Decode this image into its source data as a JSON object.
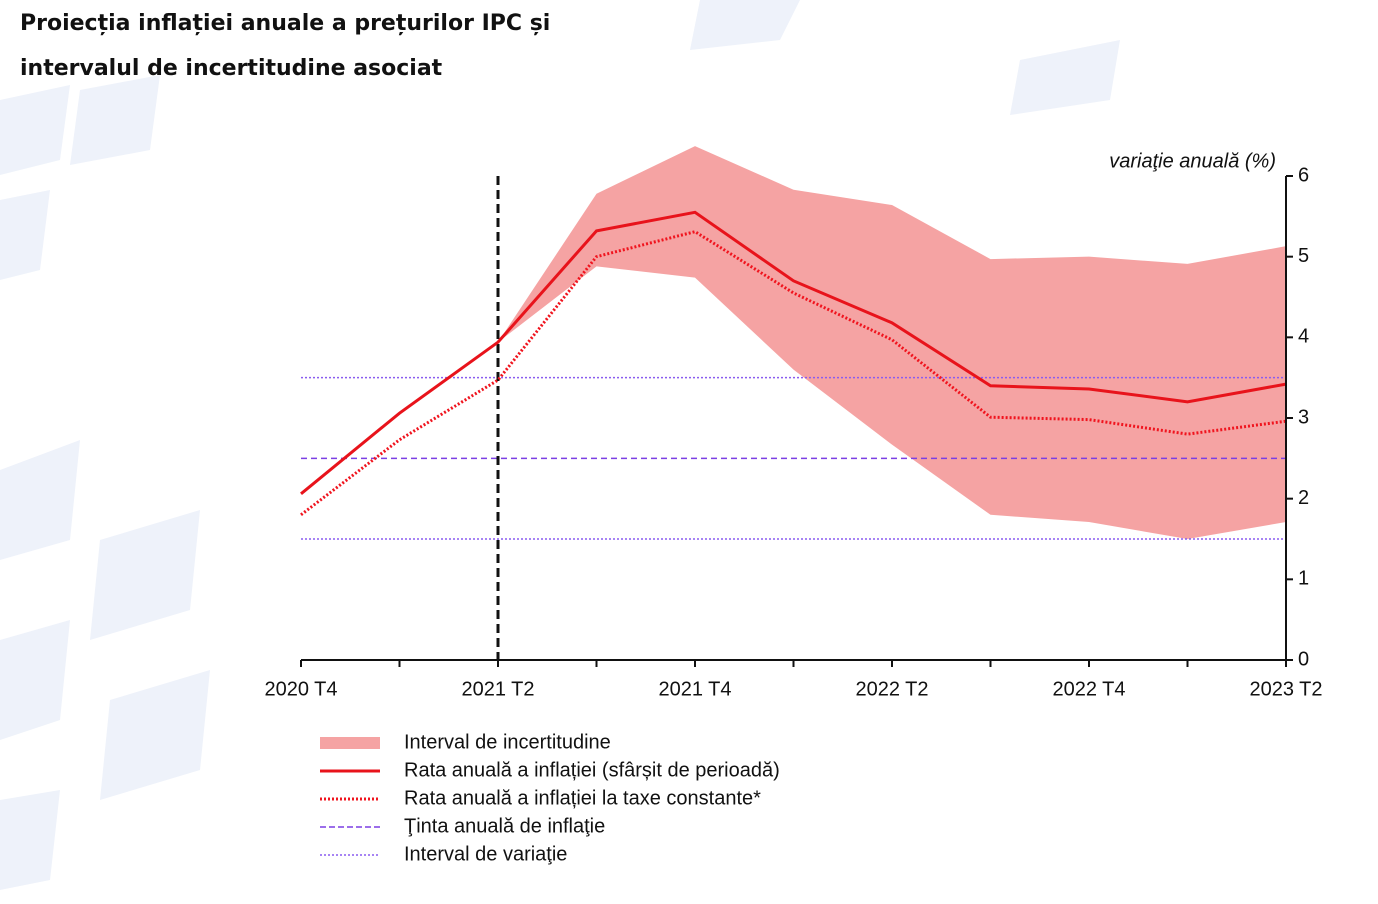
{
  "chart_data": {
    "type": "line",
    "title": [
      "Proiecția inflației anuale a prețurilor IPC și",
      "intervalul de incertitudine asociat"
    ],
    "y_axis_label": "variaţie anuală (%)",
    "categories": [
      "2020 T4",
      null,
      "2021 T2",
      null,
      "2021 T4",
      null,
      "2022 T2",
      null,
      "2022 T4",
      null,
      "2023 T2"
    ],
    "ylim": [
      0,
      6
    ],
    "yticks": [
      0,
      1,
      2,
      3,
      4,
      5,
      6
    ],
    "forecast_start": "2021 T2",
    "band": {
      "name": "Interval de incertitudine",
      "color": "#f5a3a3",
      "lower": [
        null,
        null,
        3.94,
        4.88,
        4.74,
        3.6,
        2.67,
        1.8,
        1.71,
        1.5,
        1.71
      ],
      "upper": [
        null,
        null,
        3.94,
        5.78,
        6.37,
        5.83,
        5.64,
        4.97,
        5.0,
        4.91,
        5.13
      ]
    },
    "series": [
      {
        "name": "Rata anuală a inflației (sfârșit de perioadă)",
        "color": "#e8131b",
        "style": "solid",
        "values": [
          2.06,
          3.06,
          3.94,
          5.32,
          5.55,
          4.7,
          4.18,
          3.4,
          3.36,
          3.2,
          3.42
        ]
      },
      {
        "name": "Rata anuală a inflației la taxe constante*",
        "color": "#f0141e",
        "style": "dotted",
        "values": [
          1.8,
          2.73,
          3.47,
          5.0,
          5.31,
          4.55,
          3.97,
          3.01,
          2.98,
          2.8,
          2.96
        ]
      }
    ],
    "reference_lines": [
      {
        "name": "Ţinta anuală de inflaţie",
        "color": "#7b3fe4",
        "style": "dashed",
        "values": [
          2.5
        ]
      },
      {
        "name": "Interval de variaţie",
        "color": "#8a5cf0",
        "style": "dotted",
        "values": [
          1.5,
          3.5
        ]
      }
    ]
  }
}
